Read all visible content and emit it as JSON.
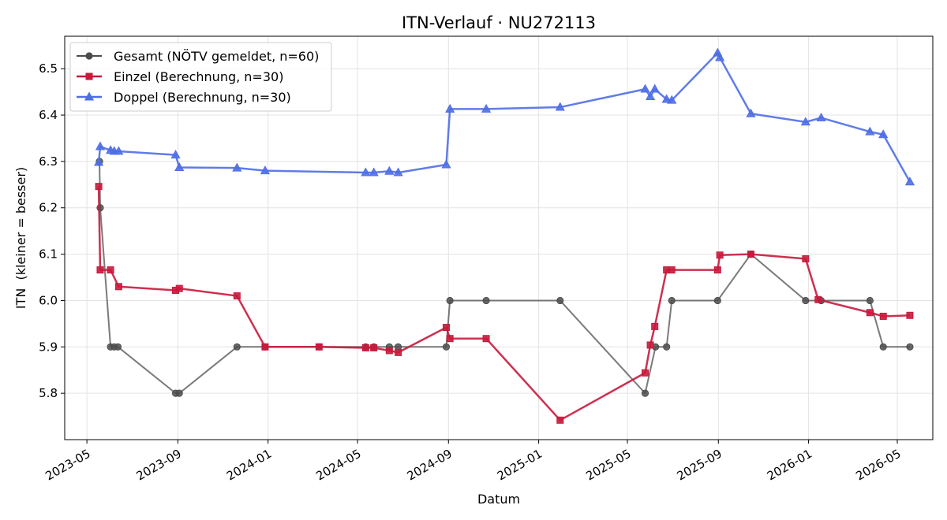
{
  "chart_data": {
    "type": "line",
    "title": "ITN-Verlauf · NU272113",
    "xlabel": "Datum",
    "ylabel": "ITN  (kleiner = besser)",
    "x_type": "date",
    "xlim": [
      "2023-04-01",
      "2026-06-18"
    ],
    "ylim": [
      5.7,
      6.57
    ],
    "x_ticks": [
      {
        "date": "2023-05-01",
        "label": "2023-05"
      },
      {
        "date": "2023-09-01",
        "label": "2023-09"
      },
      {
        "date": "2024-01-01",
        "label": "2024-01"
      },
      {
        "date": "2024-05-01",
        "label": "2024-05"
      },
      {
        "date": "2024-09-01",
        "label": "2024-09"
      },
      {
        "date": "2025-01-01",
        "label": "2025-01"
      },
      {
        "date": "2025-05-01",
        "label": "2025-05"
      },
      {
        "date": "2025-09-01",
        "label": "2025-09"
      },
      {
        "date": "2026-01-01",
        "label": "2026-01"
      },
      {
        "date": "2026-05-01",
        "label": "2026-05"
      }
    ],
    "y_ticks": [
      5.8,
      5.9,
      6.0,
      6.1,
      6.2,
      6.3,
      6.4,
      6.5
    ],
    "y_tick_labels": [
      "5.8",
      "5.9",
      "6.0",
      "6.1",
      "6.2",
      "6.3",
      "6.4",
      "6.5"
    ],
    "grid": true,
    "legend_position": "top-left",
    "series": [
      {
        "name": "Gesamt (NÖTV gemeldet, n=60)",
        "color": "#4d4d4d",
        "marker": "circle",
        "points": [
          [
            "2023-05-18",
            6.3
          ],
          [
            "2023-05-19",
            6.2
          ],
          [
            "2023-06-02",
            5.9
          ],
          [
            "2023-06-07",
            5.9
          ],
          [
            "2023-06-12",
            5.9
          ],
          [
            "2023-08-29",
            5.8
          ],
          [
            "2023-09-03",
            5.8
          ],
          [
            "2023-11-20",
            5.9
          ],
          [
            "2023-12-28",
            5.9
          ],
          [
            "2024-03-10",
            5.9
          ],
          [
            "2024-05-12",
            5.9
          ],
          [
            "2024-05-23",
            5.9
          ],
          [
            "2024-06-13",
            5.9
          ],
          [
            "2024-06-25",
            5.9
          ],
          [
            "2024-08-29",
            5.9
          ],
          [
            "2024-09-03",
            6.0
          ],
          [
            "2024-10-22",
            6.0
          ],
          [
            "2025-01-30",
            6.0
          ],
          [
            "2025-05-25",
            5.8
          ],
          [
            "2025-06-08",
            5.9
          ],
          [
            "2025-06-23",
            5.9
          ],
          [
            "2025-06-30",
            6.0
          ],
          [
            "2025-08-31",
            6.0
          ],
          [
            "2025-10-15",
            6.1
          ],
          [
            "2025-12-28",
            6.0
          ],
          [
            "2026-01-18",
            6.0
          ],
          [
            "2026-03-25",
            6.0
          ],
          [
            "2026-04-12",
            5.9
          ],
          [
            "2026-05-18",
            5.9
          ]
        ]
      },
      {
        "name": "Einzel (Berechnung, n=30)",
        "color": "#c8193c",
        "marker": "square",
        "points": [
          [
            "2023-05-17",
            6.246
          ],
          [
            "2023-05-19",
            6.066
          ],
          [
            "2023-06-02",
            6.066
          ],
          [
            "2023-06-13",
            6.03
          ],
          [
            "2023-08-29",
            6.022
          ],
          [
            "2023-09-03",
            6.026
          ],
          [
            "2023-11-20",
            6.01
          ],
          [
            "2023-12-28",
            5.9
          ],
          [
            "2024-03-10",
            5.9
          ],
          [
            "2024-05-12",
            5.898
          ],
          [
            "2024-05-23",
            5.898
          ],
          [
            "2024-06-13",
            5.892
          ],
          [
            "2024-06-25",
            5.888
          ],
          [
            "2024-08-29",
            5.942
          ],
          [
            "2024-09-03",
            5.918
          ],
          [
            "2024-10-22",
            5.918
          ],
          [
            "2025-01-30",
            5.742
          ],
          [
            "2025-05-25",
            5.844
          ],
          [
            "2025-06-01",
            5.904
          ],
          [
            "2025-06-07",
            5.944
          ],
          [
            "2025-06-23",
            6.066
          ],
          [
            "2025-06-30",
            6.066
          ],
          [
            "2025-08-31",
            6.066
          ],
          [
            "2025-09-03",
            6.098
          ],
          [
            "2025-10-15",
            6.1
          ],
          [
            "2025-12-28",
            6.09
          ],
          [
            "2026-01-14",
            6.002
          ],
          [
            "2026-03-25",
            5.974
          ],
          [
            "2026-04-12",
            5.966
          ],
          [
            "2026-05-18",
            5.968
          ]
        ]
      },
      {
        "name": "Doppel (Berechnung, n=30)",
        "color": "#4f6ee6",
        "marker": "triangle",
        "points": [
          [
            "2023-05-17",
            6.298
          ],
          [
            "2023-05-19",
            6.332
          ],
          [
            "2023-06-02",
            6.324
          ],
          [
            "2023-06-07",
            6.322
          ],
          [
            "2023-06-13",
            6.322
          ],
          [
            "2023-08-29",
            6.314
          ],
          [
            "2023-09-03",
            6.287
          ],
          [
            "2023-11-20",
            6.286
          ],
          [
            "2023-12-28",
            6.28
          ],
          [
            "2024-05-12",
            6.276
          ],
          [
            "2024-05-23",
            6.276
          ],
          [
            "2024-06-13",
            6.279
          ],
          [
            "2024-06-25",
            6.276
          ],
          [
            "2024-08-29",
            6.293
          ],
          [
            "2024-09-03",
            6.413
          ],
          [
            "2024-10-22",
            6.413
          ],
          [
            "2025-01-30",
            6.417
          ],
          [
            "2025-05-25",
            6.456
          ],
          [
            "2025-06-01",
            6.44
          ],
          [
            "2025-06-07",
            6.456
          ],
          [
            "2025-06-23",
            6.434
          ],
          [
            "2025-06-30",
            6.432
          ],
          [
            "2025-08-31",
            6.534
          ],
          [
            "2025-09-03",
            6.524
          ],
          [
            "2025-10-15",
            6.403
          ],
          [
            "2025-12-28",
            6.385
          ],
          [
            "2026-01-18",
            6.394
          ],
          [
            "2026-03-25",
            6.364
          ],
          [
            "2026-04-12",
            6.358
          ],
          [
            "2026-05-18",
            6.256
          ]
        ]
      }
    ]
  }
}
